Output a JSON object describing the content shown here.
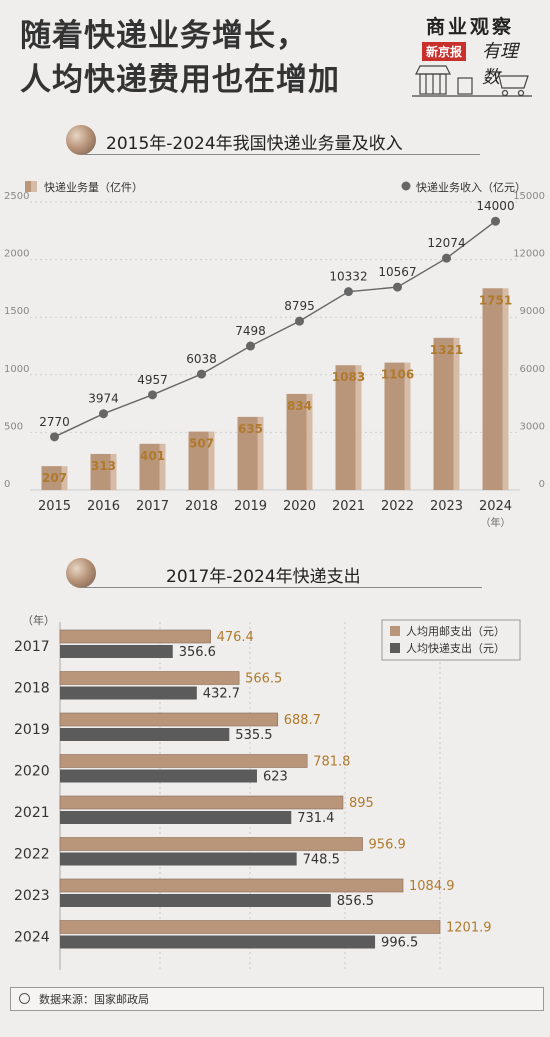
{
  "header": {
    "headline_line1": "随着快递业务增长，",
    "headline_line2": "人均快递费用也在增加",
    "brand_name": "商业观察",
    "brand_sub": "新京报",
    "brand_script": "有理数"
  },
  "colors": {
    "bar_tan": "#b9957a",
    "bar_tan_light": "#d6bca6",
    "bar_gray": "#5b5b5b",
    "line_gray": "#666666",
    "label_gold": "#b07a2e",
    "background": "#efeeec"
  },
  "footer": {
    "source": "数据来源：国家邮政局"
  },
  "chart_data": [
    {
      "type": "bar",
      "title": "2015年-2024年我国快递业务量及收入",
      "categories": [
        "2015",
        "2016",
        "2017",
        "2018",
        "2019",
        "2020",
        "2021",
        "2022",
        "2023",
        "2024"
      ],
      "x_unit": "（年）",
      "series": [
        {
          "name": "快递业务量（亿件）",
          "type": "bar",
          "axis": "left",
          "values": [
            207,
            313,
            401,
            507,
            635,
            834,
            1083,
            1106,
            1321,
            1751
          ]
        },
        {
          "name": "快递业务收入（亿元）",
          "type": "line",
          "axis": "right",
          "values": [
            2770,
            3974,
            4957,
            6038,
            7498,
            8795,
            10332,
            10567,
            12074,
            14000
          ]
        }
      ],
      "y_left": {
        "ylim": [
          0,
          2500
        ],
        "ticks": [
          "0",
          "500",
          "1000",
          "1500",
          "2000",
          "2500"
        ]
      },
      "y_right": {
        "ylim": [
          0,
          15000
        ],
        "ticks": [
          "0",
          "3000",
          "6000",
          "9000",
          "12000",
          "15000"
        ]
      },
      "legend": "top"
    },
    {
      "type": "bar",
      "orientation": "horizontal",
      "title": "2017年-2024年快递支出",
      "y_unit": "（年）",
      "categories": [
        "2017",
        "2018",
        "2019",
        "2020",
        "2021",
        "2022",
        "2023",
        "2024"
      ],
      "series": [
        {
          "name": "人均用邮支出（元）",
          "values": [
            476.4,
            566.5,
            688.7,
            781.8,
            895,
            956.9,
            1084.9,
            1201.9
          ],
          "labels": [
            "476.4",
            "566.5",
            "688.7",
            "781.8",
            "895",
            "956.9",
            "1084.9",
            "1201.9"
          ]
        },
        {
          "name": "人均快递支出（元）",
          "values": [
            356.6,
            432.7,
            535.5,
            623,
            731.4,
            748.5,
            856.5,
            996.5
          ],
          "labels": [
            "356.6",
            "432.7",
            "535.5",
            "623",
            "731.4",
            "748.5",
            "856.5",
            "996.5"
          ]
        }
      ],
      "legend": "top-right"
    }
  ]
}
